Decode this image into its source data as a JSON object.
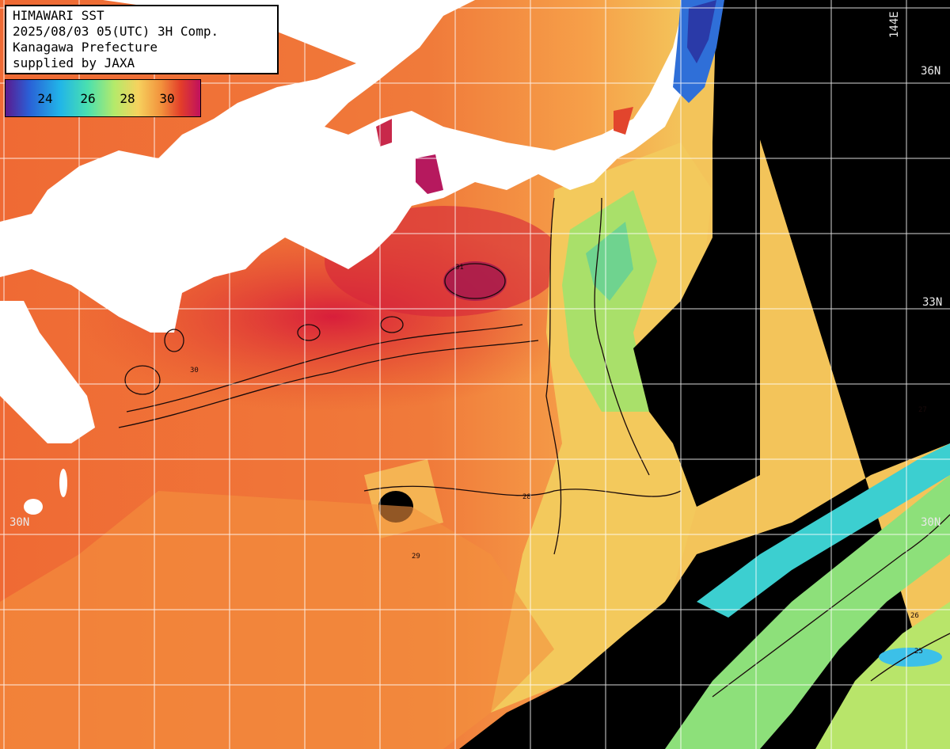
{
  "header": {
    "line1": "HIMAWARI SST",
    "line2": "2025/08/03 05(UTC) 3H Comp.",
    "line3": "Kanagawa Prefecture",
    "line4": "supplied by JAXA"
  },
  "colorbar": {
    "ticks": [
      "24",
      "26",
      "28",
      "30"
    ],
    "colors": [
      "#6a1b9a",
      "#1e88e5",
      "#26c6da",
      "#66e39a",
      "#d6e96a",
      "#f7c35a",
      "#f08a3c",
      "#e64a2e",
      "#c2185b"
    ]
  },
  "grid_labels": {
    "lon_144": "144E",
    "lat_36": "36N",
    "lat_33": "33N",
    "lat_30_left": "30N",
    "lat_30_right": "30N"
  },
  "contours": [
    "25",
    "26",
    "27",
    "28",
    "29",
    "30",
    "31"
  ],
  "colors": {
    "land": "#ffffff",
    "no_data": "#000000",
    "warm": "#ee6a33",
    "hot": "#d9352a",
    "grid": "#ffffff"
  }
}
